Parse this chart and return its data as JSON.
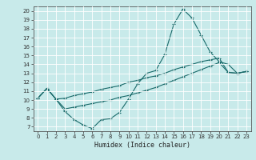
{
  "title": "",
  "xlabel": "Humidex (Indice chaleur)",
  "background_color": "#c8eaea",
  "grid_color": "#ffffff",
  "line_color": "#1a6b6b",
  "xlim": [
    -0.5,
    23.5
  ],
  "ylim": [
    6.5,
    20.5
  ],
  "xticks": [
    0,
    1,
    2,
    3,
    4,
    5,
    6,
    7,
    8,
    9,
    10,
    11,
    12,
    13,
    14,
    15,
    16,
    17,
    18,
    19,
    20,
    21,
    22,
    23
  ],
  "yticks": [
    7,
    8,
    9,
    10,
    11,
    12,
    13,
    14,
    15,
    16,
    17,
    18,
    19,
    20
  ],
  "line1_x": [
    0,
    1,
    2,
    3,
    4,
    5,
    6,
    7,
    8,
    9,
    10,
    11,
    12,
    13,
    14,
    15,
    16,
    17,
    18,
    19,
    20,
    21,
    22,
    23
  ],
  "line1_y": [
    10.2,
    11.3,
    10.1,
    8.7,
    7.8,
    7.2,
    6.8,
    7.8,
    7.9,
    8.6,
    10.1,
    11.8,
    13.0,
    13.3,
    15.1,
    18.5,
    20.2,
    19.2,
    17.3,
    15.4,
    14.3,
    14.0,
    13.0,
    13.2
  ],
  "line2_x": [
    0,
    1,
    2,
    3,
    4,
    5,
    6,
    7,
    8,
    9,
    10,
    11,
    12,
    13,
    14,
    15,
    16,
    17,
    18,
    19,
    20,
    21,
    22,
    23
  ],
  "line2_y": [
    10.2,
    11.3,
    10.1,
    10.2,
    10.5,
    10.7,
    10.9,
    11.2,
    11.4,
    11.6,
    12.0,
    12.2,
    12.5,
    12.7,
    13.0,
    13.4,
    13.7,
    14.0,
    14.3,
    14.5,
    14.7,
    13.1,
    13.0,
    13.2
  ],
  "line3_x": [
    0,
    1,
    2,
    3,
    4,
    5,
    6,
    7,
    8,
    9,
    10,
    11,
    12,
    13,
    14,
    15,
    16,
    17,
    18,
    19,
    20,
    21,
    22,
    23
  ],
  "line3_y": [
    10.2,
    11.3,
    10.1,
    9.0,
    9.2,
    9.4,
    9.6,
    9.8,
    10.0,
    10.3,
    10.5,
    10.8,
    11.1,
    11.4,
    11.8,
    12.2,
    12.6,
    13.0,
    13.4,
    13.8,
    14.2,
    13.1,
    13.0,
    13.2
  ]
}
